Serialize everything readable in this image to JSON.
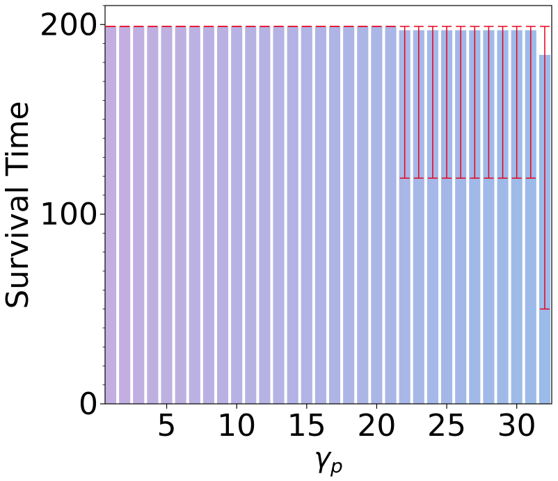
{
  "chart_data": {
    "type": "bar",
    "xlabel_symbol": "γ",
    "xlabel_subscript": "p",
    "ylabel": "Survival Time",
    "x": [
      1,
      2,
      3,
      4,
      5,
      6,
      7,
      8,
      9,
      10,
      11,
      12,
      13,
      14,
      15,
      16,
      17,
      18,
      19,
      20,
      21,
      22,
      23,
      24,
      25,
      26,
      27,
      28,
      29,
      30,
      31,
      32
    ],
    "values": [
      199,
      199,
      199,
      199,
      199,
      199,
      199,
      199,
      199,
      199,
      199,
      199,
      199,
      199,
      199,
      199,
      199,
      199,
      199,
      199,
      199,
      197,
      197,
      197,
      197,
      197,
      197,
      197,
      197,
      197,
      197,
      184
    ],
    "error_upper": [
      199,
      199,
      199,
      199,
      199,
      199,
      199,
      199,
      199,
      199,
      199,
      199,
      199,
      199,
      199,
      199,
      199,
      199,
      199,
      199,
      199,
      199,
      199,
      199,
      199,
      199,
      199,
      199,
      199,
      199,
      199,
      199
    ],
    "error_lower": [
      199,
      199,
      199,
      199,
      199,
      199,
      199,
      199,
      199,
      199,
      199,
      199,
      199,
      199,
      199,
      199,
      199,
      199,
      199,
      199,
      199,
      119,
      119,
      119,
      119,
      119,
      119,
      119,
      119,
      119,
      119,
      50
    ],
    "xlim": [
      0.6,
      32.5
    ],
    "ylim": [
      0,
      210
    ],
    "xticks": [
      "5",
      "10",
      "15",
      "20",
      "25",
      "30"
    ],
    "xtick_values": [
      5,
      10,
      15,
      20,
      25,
      30
    ],
    "yticks": [
      "0",
      "100",
      "200"
    ],
    "ytick_values": [
      0,
      100,
      200
    ],
    "colors": {
      "bar_start": "#c3aee0",
      "bar_end": "#9bbbe9",
      "error_bar": "#e8001c",
      "axis": "#000000"
    },
    "grid": false
  }
}
